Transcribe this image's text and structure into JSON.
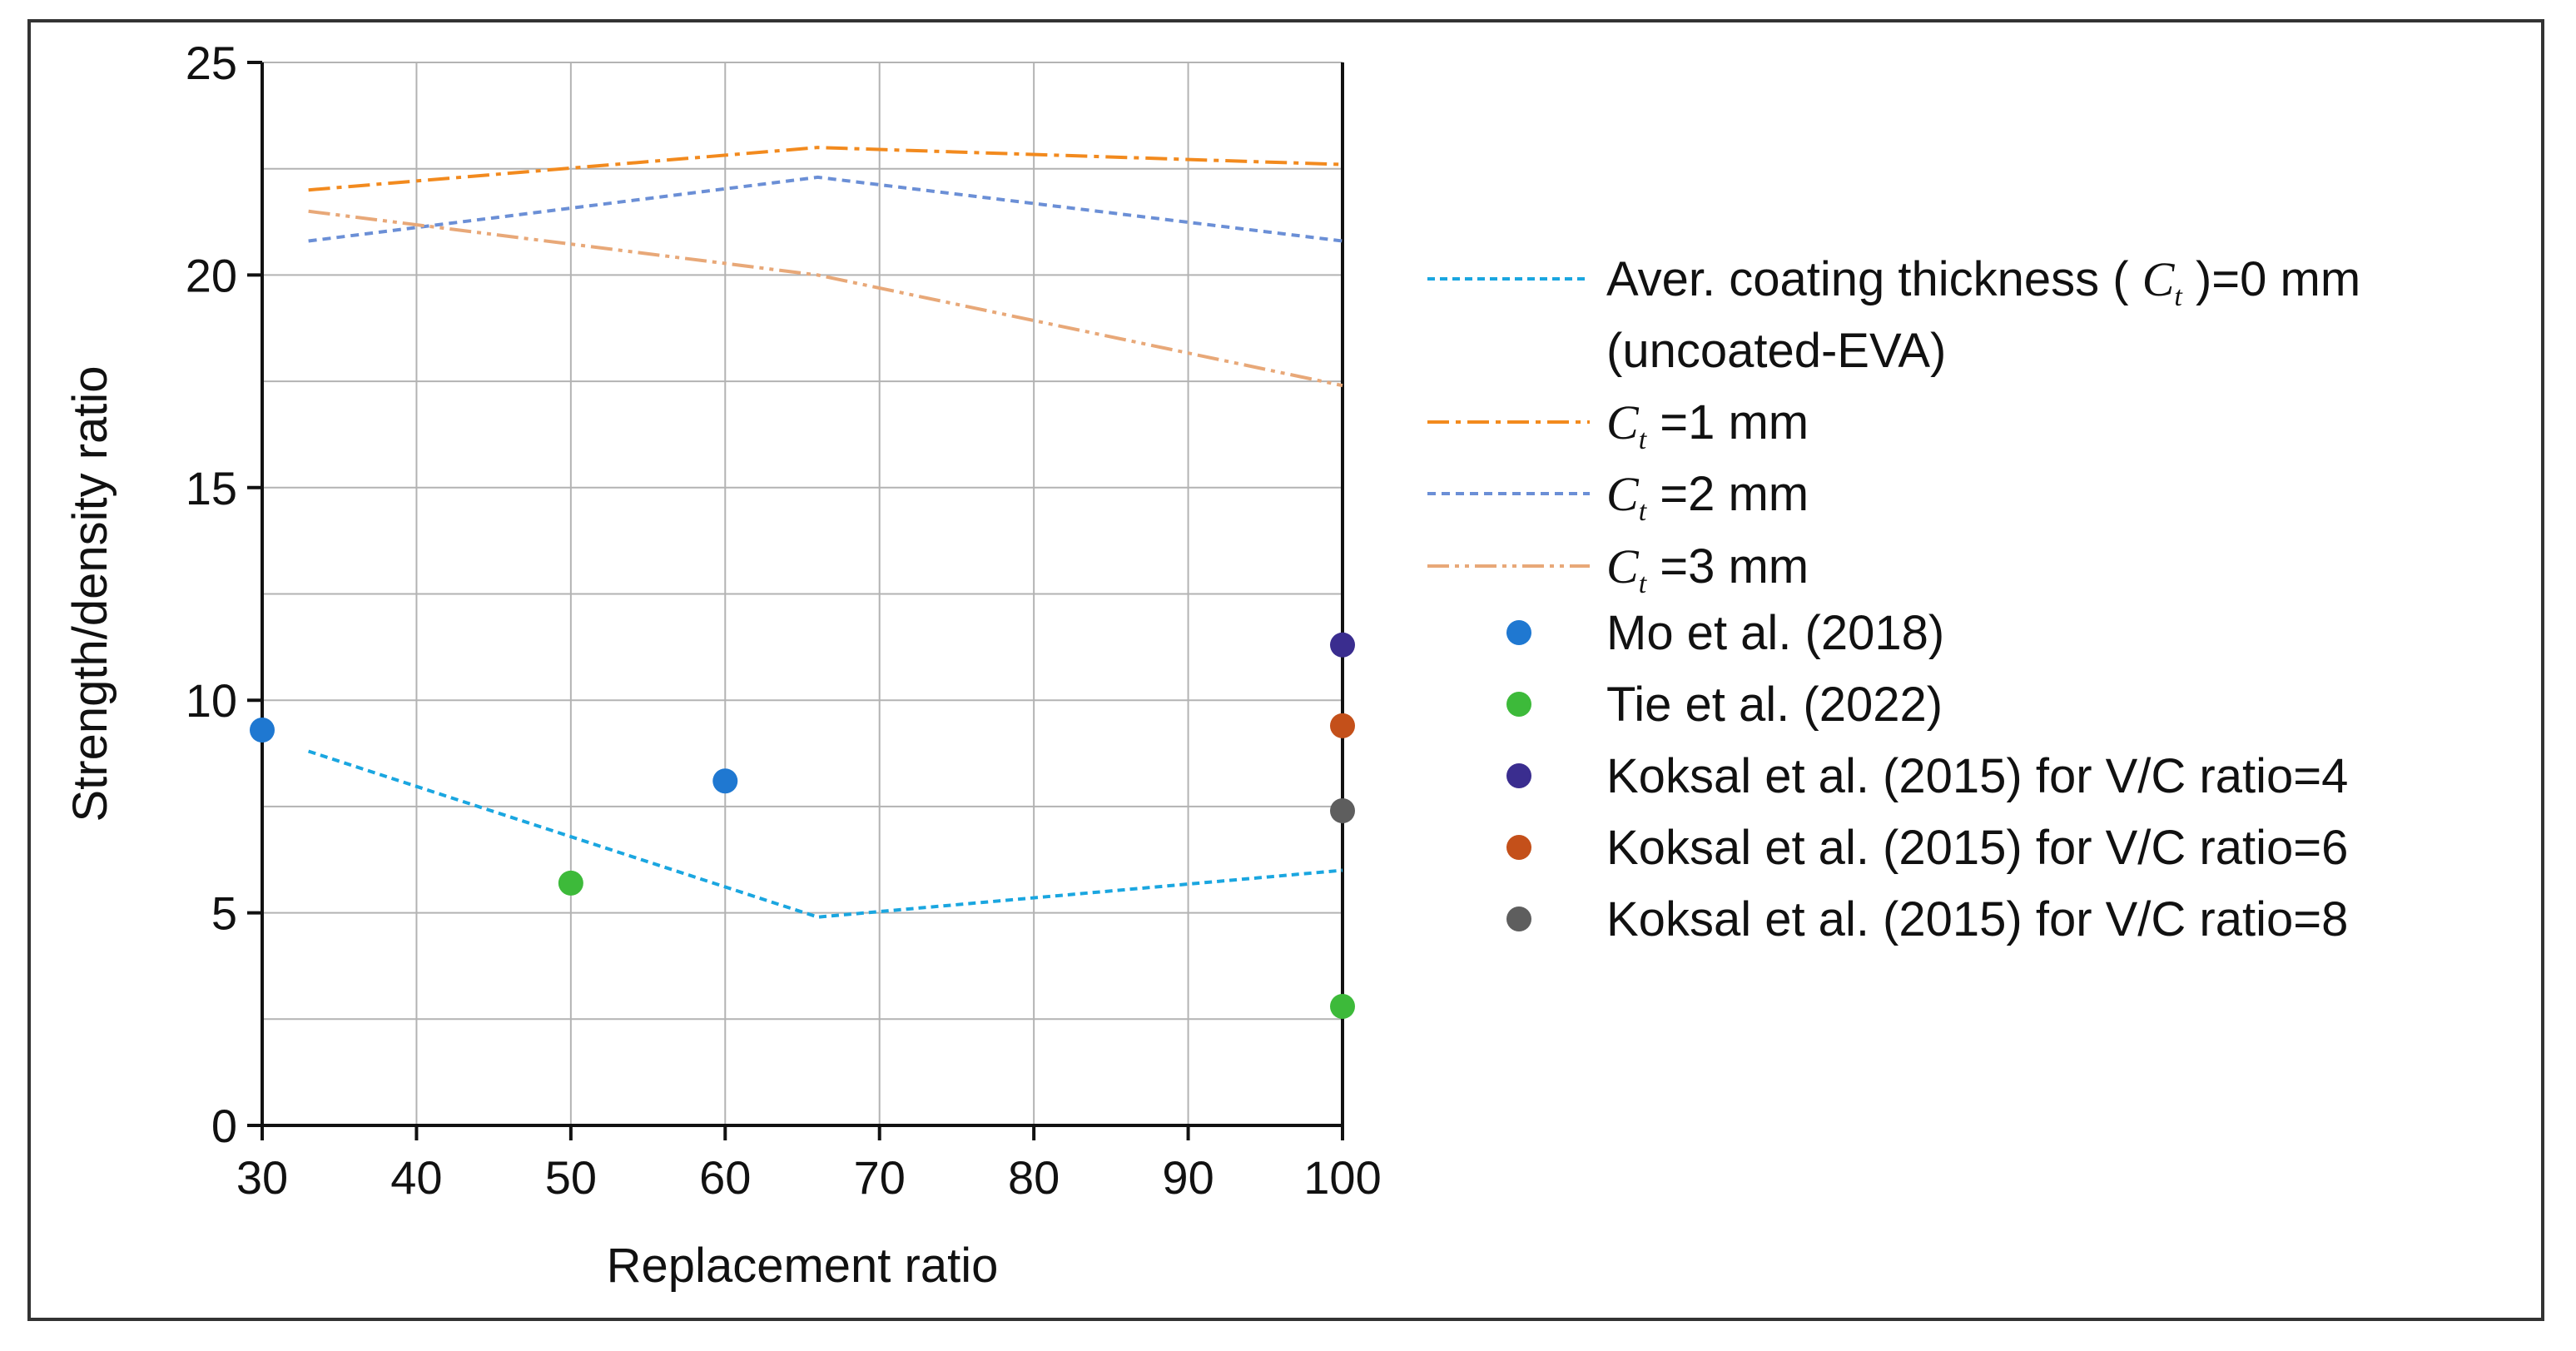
{
  "chart_data": {
    "type": "line",
    "xlabel": "Replacement ratio",
    "ylabel": "Strength/density ratio",
    "xlim": [
      30,
      100
    ],
    "ylim": [
      0,
      25
    ],
    "xticks": [
      30,
      40,
      50,
      60,
      70,
      80,
      90,
      100
    ],
    "yticks": [
      0,
      5,
      10,
      15,
      20,
      25
    ],
    "grid": true,
    "legend_position": "right",
    "line_series": [
      {
        "name": "Aver. coating thickness ( Ct )=0 mm (uncoated-EVA)",
        "label_main": "Aver. coating thickness (",
        "label_symbol": "C",
        "label_sub": "t",
        "label_tail": ")=0 mm",
        "label_line2": "(uncoated-EVA)",
        "color": "#1aa6e0",
        "style": "dotted",
        "x": [
          33,
          66,
          100
        ],
        "y": [
          8.8,
          4.9,
          6.0
        ]
      },
      {
        "name": "Ct =1 mm",
        "label_symbol": "C",
        "label_sub": "t",
        "label_tail": "=1 mm",
        "color": "#f28a1e",
        "style": "dashdot",
        "x": [
          33,
          66,
          100
        ],
        "y": [
          22.0,
          23.0,
          22.6
        ]
      },
      {
        "name": "Ct =2 mm",
        "label_symbol": "C",
        "label_sub": "t",
        "label_tail": "=2 mm",
        "color": "#6b8fd6",
        "style": "dashed",
        "x": [
          33,
          66,
          100
        ],
        "y": [
          20.8,
          22.3,
          20.8
        ]
      },
      {
        "name": "Ct =3 mm",
        "label_symbol": "C",
        "label_sub": "t",
        "label_tail": "=3 mm",
        "color": "#e8a878",
        "style": "dashdotdot",
        "x": [
          33,
          66,
          100
        ],
        "y": [
          21.5,
          20.0,
          17.4
        ]
      }
    ],
    "scatter_series": [
      {
        "name": "Mo et al. (2018)",
        "color": "#1f78d1",
        "points": [
          [
            30,
            9.3
          ],
          [
            60,
            8.1
          ]
        ]
      },
      {
        "name": "Tie et al. (2022)",
        "color": "#3dba3a",
        "points": [
          [
            50,
            5.7
          ],
          [
            100,
            2.8
          ]
        ]
      },
      {
        "name": "Koksal et al. (2015) for V/C ratio=4",
        "color": "#3a2d8f",
        "points": [
          [
            100,
            11.3
          ]
        ]
      },
      {
        "name": "Koksal et al. (2015) for V/C ratio=6",
        "color": "#c4501a",
        "points": [
          [
            100,
            9.4
          ]
        ]
      },
      {
        "name": "Koksal et al. (2015) for V/C ratio=8",
        "color": "#5e5e5e",
        "points": [
          [
            100,
            7.4
          ]
        ]
      }
    ]
  }
}
